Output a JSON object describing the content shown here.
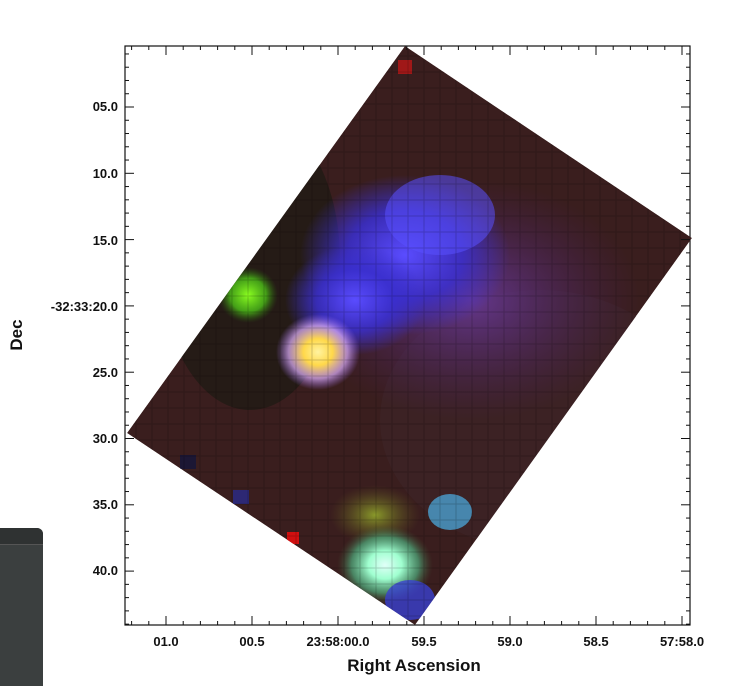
{
  "chart_data": {
    "type": "heatmap",
    "title": "",
    "xlabel": "Right Ascension",
    "ylabel": "Dec",
    "x_ticks": [
      "01.0",
      "00.5",
      "23:58:00.0",
      "59.5",
      "59.0",
      "58.5",
      "57:58.0"
    ],
    "y_ticks": [
      "05.0",
      "10.0",
      "15.0",
      "-32:33:20.0",
      "25.0",
      "30.0",
      "35.0",
      "40.0"
    ],
    "image": "RGB composite, rotated field of view",
    "colors": {
      "background": "#3a1e1e",
      "blue_emission": "#4a3cff",
      "green_emission": "#7cff2a",
      "yellow_core": "#ffe35a",
      "cyan_emission": "#b8fff0"
    }
  },
  "side_panel": {
    "title": ""
  }
}
